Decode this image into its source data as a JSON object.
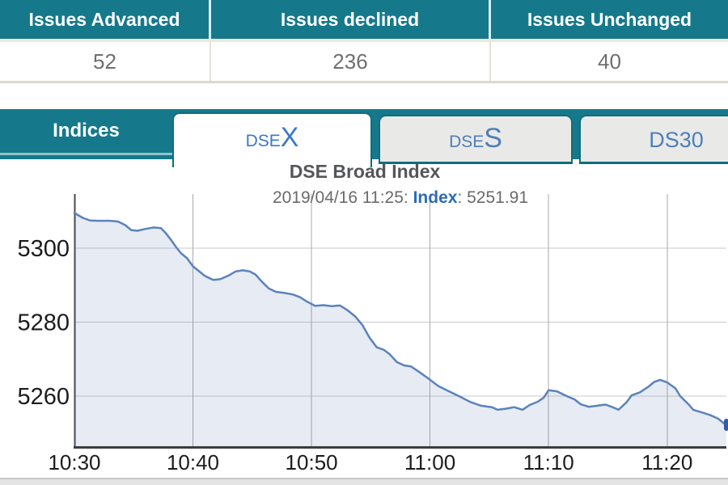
{
  "market_table": {
    "columns": [
      {
        "header": "Issues Advanced",
        "value": "52"
      },
      {
        "header": "Issues declined",
        "value": "236"
      },
      {
        "header": "Issues Unchanged",
        "value": "40"
      }
    ]
  },
  "tabs": {
    "section_label": "Indices",
    "items": [
      {
        "label_prefix": "DSE",
        "label_suffix": "X",
        "active": true
      },
      {
        "label_prefix": "DSE",
        "label_suffix": "S",
        "active": false
      },
      {
        "label_prefix": "DS30",
        "label_suffix": "",
        "active": false
      }
    ]
  },
  "chart": {
    "title": "DSE Broad Index",
    "subtitle_prefix": "2019/04/16 11:25: ",
    "subtitle_label": "Index",
    "subtitle_value": ": 5251.91"
  },
  "chart_data": {
    "type": "area",
    "title": "DSE Broad Index",
    "subtitle": "2019/04/16 11:25: Index: 5251.91",
    "xlabel": "",
    "ylabel": "",
    "x_unit": "minutes after 10:30",
    "xlim": [
      0,
      55
    ],
    "ylim": [
      5246,
      5315
    ],
    "grid": true,
    "legend": "none",
    "last_point": {
      "time": "11:25",
      "index": 5251.91
    },
    "x_ticks": [
      {
        "t": 0,
        "label": "10:30"
      },
      {
        "t": 10,
        "label": "10:40"
      },
      {
        "t": 20,
        "label": "10:50"
      },
      {
        "t": 30,
        "label": "11:00"
      },
      {
        "t": 40,
        "label": "11:10"
      },
      {
        "t": 50,
        "label": "11:20"
      }
    ],
    "y_ticks": [
      {
        "v": 5300,
        "label": "5300"
      },
      {
        "v": 5280,
        "label": "5280"
      },
      {
        "v": 5260,
        "label": "5260"
      }
    ],
    "points": [
      [
        0,
        5309.5
      ],
      [
        0.7,
        5308.2
      ],
      [
        1.3,
        5307.5
      ],
      [
        2,
        5307.4
      ],
      [
        3,
        5307.4
      ],
      [
        3.7,
        5307.2
      ],
      [
        4.3,
        5306.2
      ],
      [
        4.8,
        5304.9
      ],
      [
        5.3,
        5304.7
      ],
      [
        6,
        5305.2
      ],
      [
        6.7,
        5305.6
      ],
      [
        7.3,
        5305.4
      ],
      [
        7.7,
        5304.1
      ],
      [
        8.2,
        5302.0
      ],
      [
        8.6,
        5300.2
      ],
      [
        9,
        5298.6
      ],
      [
        9.5,
        5297.3
      ],
      [
        10,
        5295.1
      ],
      [
        10.5,
        5293.8
      ],
      [
        11,
        5292.5
      ],
      [
        11.7,
        5291.4
      ],
      [
        12.3,
        5291.6
      ],
      [
        13,
        5292.6
      ],
      [
        13.6,
        5293.7
      ],
      [
        14.2,
        5294.0
      ],
      [
        14.8,
        5293.7
      ],
      [
        15.3,
        5292.8
      ],
      [
        15.8,
        5291.0
      ],
      [
        16.4,
        5289.1
      ],
      [
        17,
        5288.2
      ],
      [
        17.7,
        5287.9
      ],
      [
        18.4,
        5287.5
      ],
      [
        19,
        5286.8
      ],
      [
        19.6,
        5285.6
      ],
      [
        20.3,
        5284.4
      ],
      [
        21,
        5284.6
      ],
      [
        21.7,
        5284.3
      ],
      [
        22.4,
        5284.5
      ],
      [
        23,
        5283.3
      ],
      [
        23.7,
        5281.5
      ],
      [
        24.3,
        5279.2
      ],
      [
        24.9,
        5275.8
      ],
      [
        25.5,
        5273.2
      ],
      [
        26.1,
        5272.5
      ],
      [
        26.6,
        5271.3
      ],
      [
        27.2,
        5269.2
      ],
      [
        27.8,
        5268.3
      ],
      [
        28.4,
        5268.0
      ],
      [
        29.1,
        5266.5
      ],
      [
        29.8,
        5264.9
      ],
      [
        30.7,
        5262.7
      ],
      [
        31.6,
        5261.3
      ],
      [
        32.5,
        5259.9
      ],
      [
        33.4,
        5258.4
      ],
      [
        34.3,
        5257.4
      ],
      [
        35.2,
        5257.0
      ],
      [
        35.7,
        5256.3
      ],
      [
        36.4,
        5256.6
      ],
      [
        37.1,
        5257.0
      ],
      [
        37.8,
        5256.3
      ],
      [
        38.4,
        5257.6
      ],
      [
        39.1,
        5258.5
      ],
      [
        39.6,
        5259.6
      ],
      [
        40,
        5261.6
      ],
      [
        40.7,
        5261.3
      ],
      [
        41.6,
        5259.9
      ],
      [
        42.2,
        5259.1
      ],
      [
        42.7,
        5257.8
      ],
      [
        43.4,
        5257.1
      ],
      [
        44.1,
        5257.4
      ],
      [
        44.8,
        5257.7
      ],
      [
        45.4,
        5257.0
      ],
      [
        45.9,
        5256.3
      ],
      [
        46.6,
        5258.4
      ],
      [
        47,
        5260.2
      ],
      [
        47.7,
        5261.0
      ],
      [
        48.4,
        5262.5
      ],
      [
        48.9,
        5263.8
      ],
      [
        49.4,
        5264.4
      ],
      [
        50,
        5263.7
      ],
      [
        50.7,
        5262.1
      ],
      [
        51.1,
        5260.0
      ],
      [
        51.8,
        5257.8
      ],
      [
        52.2,
        5256.3
      ],
      [
        52.9,
        5255.6
      ],
      [
        53.6,
        5254.9
      ],
      [
        54.3,
        5253.9
      ],
      [
        54.8,
        5252.6
      ],
      [
        55,
        5251.91
      ]
    ],
    "colors": {
      "line": "#5b83ba",
      "fill": "rgba(98,131,186,0.16)",
      "marker": "#2e5ea8",
      "h_grid": "#c9c9c9",
      "v_grid": "#a9a9a9",
      "axis": "#4a4a4a",
      "tick_text": "#1c1c1c",
      "accent_teal": "#16798b"
    }
  }
}
